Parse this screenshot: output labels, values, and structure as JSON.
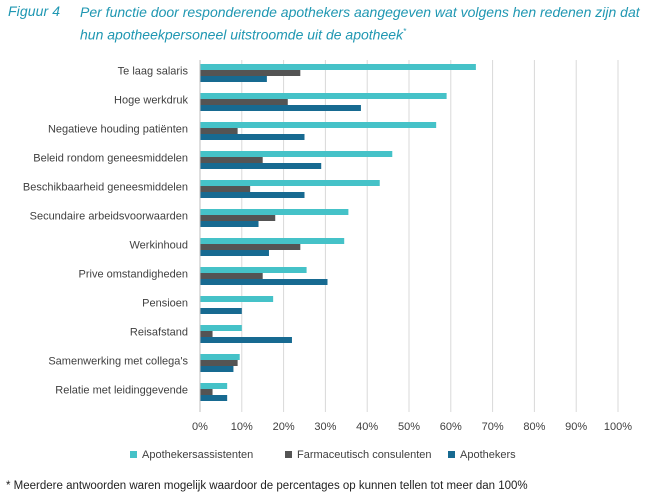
{
  "figure": {
    "label": "Figuur 4",
    "title": "Per functie door responderende apothekers aangegeven wat volgens hen redenen zijn dat hun apotheekpersoneel uitstroomde uit de apotheek",
    "title_marker": "*"
  },
  "footnote": "* Meerdere antwoorden waren mogelijk waardoor de percentages op kunnen tellen tot meer dan 100%",
  "colors": {
    "Apothekersassistenten": "#45c2c8",
    "Farmaceutisch consulenten": "#545454",
    "Apothekers": "#176a91",
    "grid": "#d9d9d9"
  },
  "chart_data": {
    "type": "bar",
    "orientation": "horizontal",
    "categories": [
      "Te laag salaris",
      "Hoge werkdruk",
      "Negatieve houding patiënten",
      "Beleid rondom geneesmiddelen",
      "Beschikbaarheid geneesmiddelen",
      "Secundaire arbeidsvoorwaarden",
      "Werkinhoud",
      "Prive omstandigheden",
      "Pensioen",
      "Reisafstand",
      "Samenwerking met collega's",
      "Relatie met leidinggevende"
    ],
    "series": [
      {
        "name": "Apothekersassistenten",
        "values": [
          66,
          59,
          56.5,
          46,
          43,
          35.5,
          34.5,
          25.5,
          17.5,
          10,
          9.5,
          6.5
        ]
      },
      {
        "name": "Farmaceutisch consulenten",
        "values": [
          24,
          21,
          9,
          15,
          12,
          18,
          24,
          15,
          0,
          3,
          9,
          3
        ]
      },
      {
        "name": "Apothekers",
        "values": [
          16,
          38.5,
          25,
          29,
          25,
          14,
          16.5,
          30.5,
          10,
          22,
          8,
          6.5
        ]
      }
    ],
    "x_ticks": [
      "0%",
      "10%",
      "20%",
      "30%",
      "40%",
      "50%",
      "60%",
      "70%",
      "80%",
      "90%",
      "100%"
    ],
    "xlim": [
      0,
      100
    ],
    "grid": true,
    "legend_position": "bottom"
  }
}
